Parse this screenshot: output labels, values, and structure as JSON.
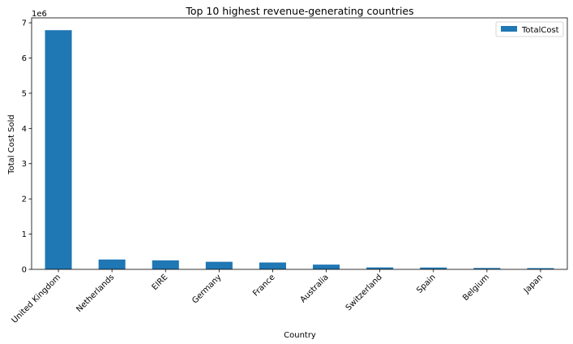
{
  "chart_data": {
    "type": "bar",
    "title": "Top 10 highest revenue-generating countries",
    "xlabel": "Country",
    "ylabel": "Total Cost Sold",
    "offset_text": "1e6",
    "categories": [
      "United Kingdom",
      "Netherlands",
      "EIRE",
      "Germany",
      "France",
      "Australia",
      "Switzerland",
      "Spain",
      "Belgium",
      "Japan"
    ],
    "series": [
      {
        "name": "TotalCost",
        "values": [
          6790000,
          280000,
          255000,
          215000,
          195000,
          135000,
          55000,
          52000,
          39000,
          35000
        ],
        "color": "#1f77b4"
      }
    ],
    "ylim": [
      0,
      7140000
    ],
    "yticks": [
      0,
      1000000,
      2000000,
      3000000,
      4000000,
      5000000,
      6000000,
      7000000
    ],
    "ytick_labels": [
      "0",
      "1",
      "2",
      "3",
      "4",
      "5",
      "6",
      "7"
    ],
    "grid": false,
    "legend": "top-right"
  }
}
